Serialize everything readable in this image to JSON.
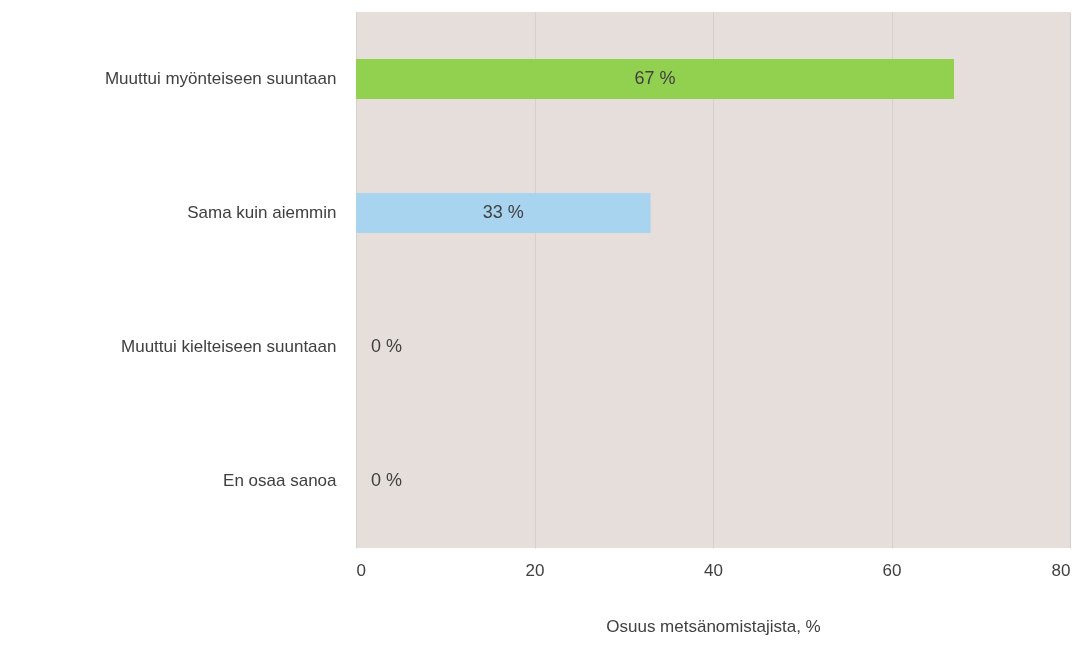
{
  "chart_data": {
    "type": "bar",
    "orientation": "horizontal",
    "xlabel": "Osuus metsänomistajista, %",
    "categories": [
      "Muuttui myönteiseen suuntaan",
      "Sama kuin aiemmin",
      "Muuttui kielteiseen suuntaan",
      "En osaa sanoa"
    ],
    "values": [
      67,
      33,
      0,
      0
    ],
    "colors": [
      "#92d050",
      "#a9d4f0",
      "#a9d4f0",
      "#a9d4f0"
    ],
    "value_labels": [
      "67 %",
      "33 %",
      "0 %",
      "0 %"
    ],
    "xlim": [
      0,
      80
    ],
    "xticks": [
      0,
      20,
      40,
      60,
      80
    ],
    "grid": "x"
  }
}
